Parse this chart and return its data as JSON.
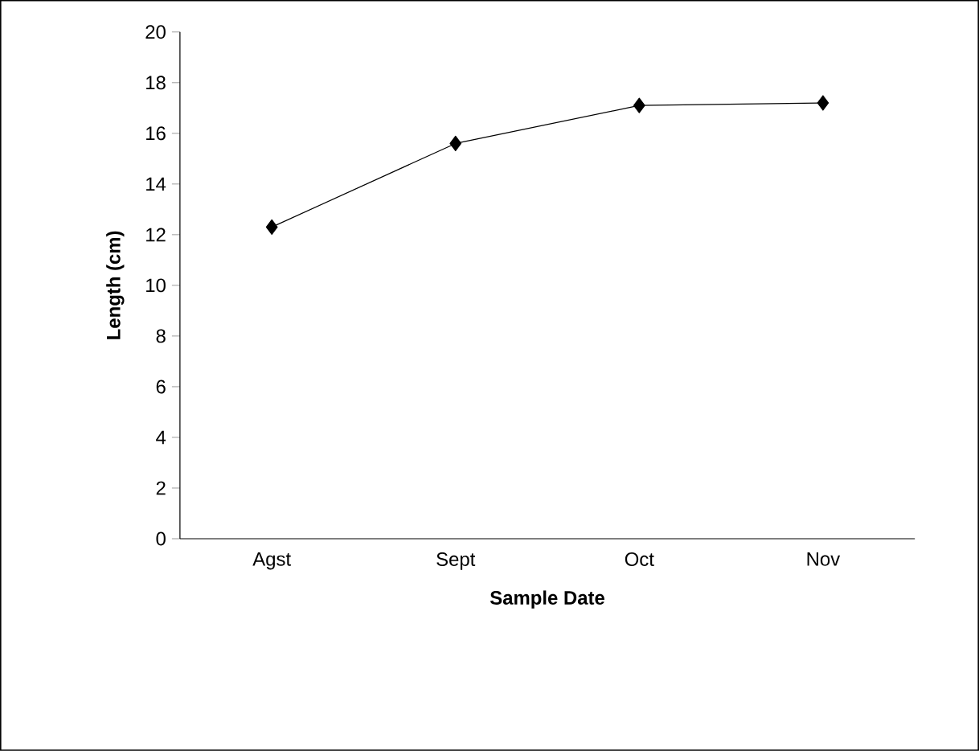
{
  "chart_data": {
    "type": "line",
    "xlabel": "Sample Date",
    "ylabel": "Length (cm)",
    "categories": [
      "Agst",
      "Sept",
      "Oct",
      "Nov"
    ],
    "values": [
      12.3,
      15.6,
      17.1,
      17.2
    ],
    "color": "#000000",
    "marker": "diamond",
    "line_style": "solid",
    "ylim": [
      0,
      20
    ],
    "yticks": [
      0,
      2,
      4,
      6,
      8,
      10,
      12,
      14,
      16,
      18,
      20
    ],
    "grid": false
  }
}
